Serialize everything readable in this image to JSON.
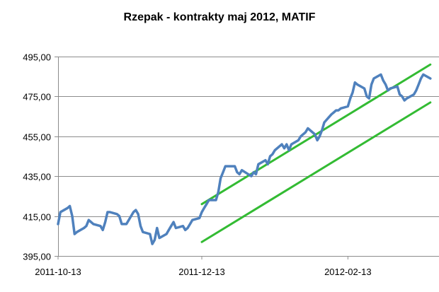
{
  "chart_data": {
    "type": "line",
    "title": "Rzepak - kontrakty maj 2012, MATIF",
    "xlabel": "",
    "ylabel": "",
    "ylim": [
      395,
      495
    ],
    "yticks": [
      "395,00",
      "415,00",
      "435,00",
      "455,00",
      "475,00",
      "495,00"
    ],
    "ytick_values": [
      395,
      415,
      435,
      455,
      475,
      495
    ],
    "xticks": [
      "2011-10-13",
      "2011-12-13",
      "2012-02-13"
    ],
    "grid": true,
    "legend": "none",
    "x_range": [
      "2011-10-13",
      "2012-03-19"
    ],
    "series": [
      {
        "color": "#4f81bd",
        "x": [
          "2011-10-13",
          "2011-10-14",
          "2011-10-17",
          "2011-10-18",
          "2011-10-19",
          "2011-10-20",
          "2011-10-21",
          "2011-10-24",
          "2011-10-25",
          "2011-10-26",
          "2011-10-27",
          "2011-10-28",
          "2011-10-31",
          "2011-11-01",
          "2011-11-02",
          "2011-11-03",
          "2011-11-04",
          "2011-11-07",
          "2011-11-08",
          "2011-11-09",
          "2011-11-10",
          "2011-11-11",
          "2011-11-14",
          "2011-11-15",
          "2011-11-16",
          "2011-11-17",
          "2011-11-18",
          "2011-11-21",
          "2011-11-22",
          "2011-11-23",
          "2011-11-24",
          "2011-11-25",
          "2011-11-28",
          "2011-11-29",
          "2011-11-30",
          "2011-12-01",
          "2011-12-02",
          "2011-12-05",
          "2011-12-06",
          "2011-12-07",
          "2011-12-08",
          "2011-12-09",
          "2011-12-12",
          "2011-12-13",
          "2011-12-14",
          "2011-12-15",
          "2011-12-16",
          "2011-12-19",
          "2011-12-20",
          "2011-12-21",
          "2011-12-22",
          "2011-12-23",
          "2011-12-27",
          "2011-12-28",
          "2011-12-29",
          "2011-12-30",
          "2012-01-03",
          "2012-01-04",
          "2012-01-05",
          "2012-01-06",
          "2012-01-09",
          "2012-01-10",
          "2012-01-11",
          "2012-01-12",
          "2012-01-13",
          "2012-01-16",
          "2012-01-17",
          "2012-01-18",
          "2012-01-19",
          "2012-01-20",
          "2012-01-23",
          "2012-01-24",
          "2012-01-25",
          "2012-01-26",
          "2012-01-27",
          "2012-01-30",
          "2012-01-31",
          "2012-02-01",
          "2012-02-02",
          "2012-02-03",
          "2012-02-06",
          "2012-02-07",
          "2012-02-08",
          "2012-02-09",
          "2012-02-10",
          "2012-02-13",
          "2012-02-14",
          "2012-02-15",
          "2012-02-16",
          "2012-02-17",
          "2012-02-20",
          "2012-02-21",
          "2012-02-22",
          "2012-02-23",
          "2012-02-24",
          "2012-02-27",
          "2012-02-28",
          "2012-02-29",
          "2012-03-01",
          "2012-03-02",
          "2012-03-05",
          "2012-03-06",
          "2012-03-07",
          "2012-03-08",
          "2012-03-09",
          "2012-03-12",
          "2012-03-13",
          "2012-03-14",
          "2012-03-15",
          "2012-03-16",
          "2012-03-19"
        ],
        "y": [
          411,
          417,
          419,
          420,
          415,
          406,
          407,
          409,
          410,
          413,
          412,
          411,
          410,
          408,
          412,
          417,
          417,
          416,
          415,
          411,
          411,
          411,
          417,
          418,
          416,
          410,
          407,
          406,
          401,
          403,
          409,
          404,
          406,
          408,
          410,
          412,
          409,
          410,
          408,
          409,
          411,
          413,
          414,
          417,
          419,
          421,
          423,
          423,
          427,
          434,
          437,
          440,
          440,
          437,
          436,
          438,
          435,
          437,
          436,
          441,
          443,
          441,
          445,
          446,
          448,
          451,
          449,
          451,
          448,
          451,
          453,
          455,
          456,
          457,
          459,
          456,
          453,
          455,
          458,
          462,
          466,
          467,
          468,
          468,
          469,
          470,
          474,
          477,
          482,
          481,
          479,
          475,
          474,
          481,
          484,
          486,
          483,
          481,
          478,
          479,
          480,
          476,
          475,
          473,
          474,
          476,
          478,
          481,
          484,
          486,
          484
        ],
        "name": ""
      }
    ],
    "trend_channel": {
      "color": "#33bb33",
      "upper": {
        "start": [
          "2011-12-13",
          421
        ],
        "end": [
          "2012-03-19",
          491
        ]
      },
      "lower": {
        "start": [
          "2011-12-13",
          402
        ],
        "end": [
          "2012-03-19",
          472
        ]
      }
    }
  }
}
